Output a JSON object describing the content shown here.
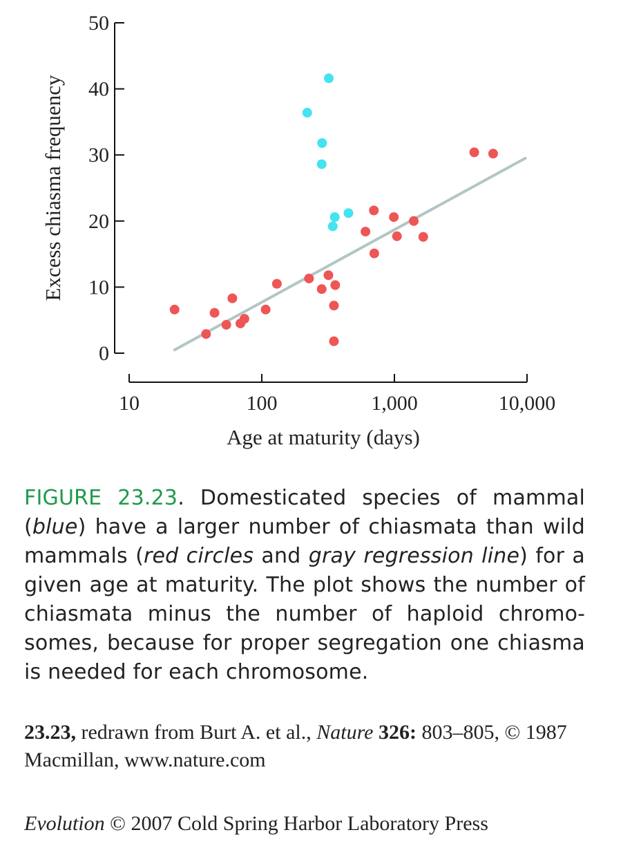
{
  "chart_data": {
    "type": "scatter",
    "ylabel": "Excess chiasma frequency",
    "xlabel": "Age at maturity (days)",
    "x_scale": "log",
    "xlim": [
      10,
      10000
    ],
    "ylim": [
      0,
      50
    ],
    "x_ticks": [
      10,
      100,
      1000,
      10000
    ],
    "x_tick_labels": [
      "10",
      "100",
      "1,000",
      "10,000"
    ],
    "y_ticks": [
      0,
      10,
      20,
      30,
      40,
      50
    ],
    "y_tick_labels": [
      "0",
      "10",
      "20",
      "30",
      "40",
      "50"
    ],
    "series": [
      {
        "color": "#ee5555",
        "points": [
          [
            22,
            6.6
          ],
          [
            38,
            2.9
          ],
          [
            44,
            6.1
          ],
          [
            54,
            4.3
          ],
          [
            60,
            8.3
          ],
          [
            69,
            4.5
          ],
          [
            74,
            5.2
          ],
          [
            107,
            6.6
          ],
          [
            130,
            10.5
          ],
          [
            227,
            11.3
          ],
          [
            283,
            9.7
          ],
          [
            318,
            11.8
          ],
          [
            350,
            7.2
          ],
          [
            350,
            1.8
          ],
          [
            358,
            10.3
          ],
          [
            605,
            18.4
          ],
          [
            700,
            21.6
          ],
          [
            705,
            15.1
          ],
          [
            990,
            20.6
          ],
          [
            1045,
            17.7
          ],
          [
            1400,
            20.0
          ],
          [
            1650,
            17.6
          ],
          [
            4000,
            30.4
          ],
          [
            5550,
            30.2
          ]
        ]
      },
      {
        "color": "#44e3f0",
        "points": [
          [
            220,
            36.4
          ],
          [
            320,
            41.6
          ],
          [
            285,
            31.8
          ],
          [
            283,
            28.6
          ],
          [
            355,
            20.6
          ],
          [
            343,
            19.2
          ],
          [
            450,
            21.2
          ]
        ]
      }
    ],
    "regression": {
      "color": "#b2c6c4",
      "from": [
        22,
        0.5
      ],
      "to": [
        9700,
        29.5
      ]
    }
  },
  "caption": {
    "figure_label": "FIGURE 23.23",
    "text_1": ". Domesticated species of mammal (",
    "blue_word": "blue",
    "text_2": ") have a larger number of chiasmata than wild mammals (",
    "red_words": "red circles",
    "text_3": " and ",
    "gray_words": "gray regression line",
    "text_4": ") for a given age at maturity. The plot shows the number of chiasmata minus the number of haploid chromo­somes, because for proper segregation one chiasma is needed for each chromosome."
  },
  "credit": {
    "fig_ref": "23.23,",
    "text_1": " redrawn from Burt A. et al., ",
    "journal": "Nature",
    "volume": " 326:",
    "text_2": " 803–805, © 1987 Macmillan, www.nature.com"
  },
  "publisher": {
    "book": "Evolution",
    "text": " © 2007 Cold Spring Harbor Laboratory Press"
  }
}
